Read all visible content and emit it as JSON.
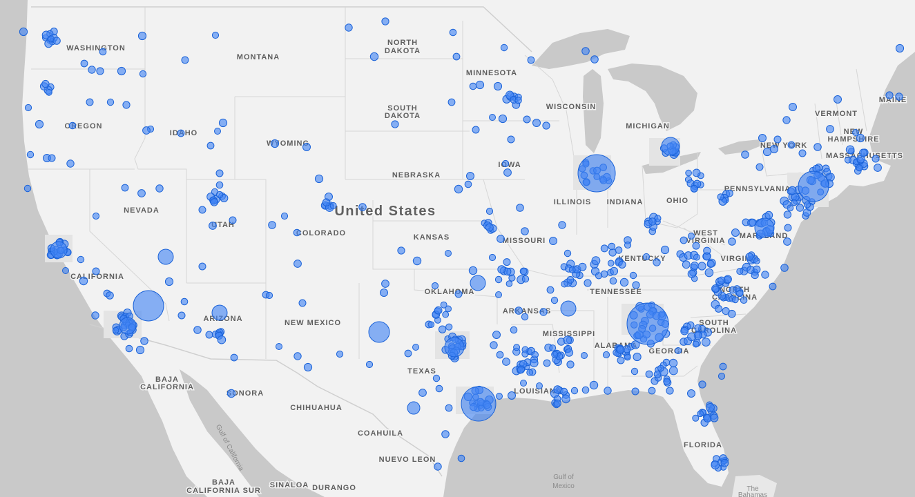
{
  "map": {
    "country_label": "United States",
    "colors": {
      "water": "#c9c9c9",
      "land": "#f2f2f2",
      "lakes": "#c9c9c9",
      "borders": "#cccccc",
      "marker_fill": "#4285f4",
      "marker_stroke": "#1a62d8"
    },
    "state_labels": {
      "washington": "WASHINGTON",
      "oregon": "OREGON",
      "idaho": "IDAHO",
      "montana": "MONTANA",
      "north_dakota_1": "NORTH",
      "north_dakota_2": "DAKOTA",
      "south_dakota_1": "SOUTH",
      "south_dakota_2": "DAKOTA",
      "minnesota": "MINNESOTA",
      "wisconsin": "WISCONSIN",
      "michigan": "MICHIGAN",
      "wyoming": "WYOMING",
      "nebraska": "NEBRASKA",
      "iowa": "IOWA",
      "illinois": "ILLINOIS",
      "indiana": "INDIANA",
      "ohio": "OHIO",
      "pennsylvania": "PENNSYLVANIA",
      "new_york": "NEW YORK",
      "vermont": "VERMONT",
      "new_hampshire_1": "NEW",
      "new_hampshire_2": "HAMPSHIRE",
      "maine": "MAINE",
      "massachusetts": "MASSACHUSETTS",
      "maryland": "MARYLAND",
      "west_virginia_1": "WEST",
      "west_virginia_2": "VIRGINIA",
      "virginia": "VIRGINIA",
      "kentucky": "KENTUCKY",
      "north_carolina_1": "NORTH",
      "north_carolina_2": "CAROLINA",
      "south_carolina_1": "SOUTH",
      "south_carolina_2": "CAROLINA",
      "tennessee": "TENNESSEE",
      "georgia": "GEORGIA",
      "alabama": "ALABAMA",
      "mississippi": "MISSISSIPPI",
      "florida": "FLORIDA",
      "louisiana": "LOUISIANA",
      "arkansas": "ARKANSAS",
      "missouri": "MISSOURI",
      "kansas": "KANSAS",
      "oklahoma": "OKLAHOMA",
      "texas": "TEXAS",
      "colorado": "COLORADO",
      "utah": "UTAH",
      "nevada": "NEVADA",
      "california": "CALIFORNIA",
      "arizona": "ARIZONA",
      "new_mexico": "NEW MEXICO",
      "baja_california_1": "BAJA",
      "baja_california_2": "CALIFORNIA",
      "sonora": "SONORA",
      "chihuahua": "CHIHUAHUA",
      "coahuila": "COAHUILA",
      "nuevo_leon": "NUEVO LEON",
      "baja_california_sur_1": "BAJA",
      "baja_california_sur_2": "CALIFORNIA SUR",
      "sinaloa": "SINALOA",
      "durango": "DURANGO"
    },
    "water_labels": {
      "gulf_of_mexico_1": "Gulf of",
      "gulf_of_mexico_2": "Mexico",
      "gulf_of_california": "Gulf of California",
      "bahamas_1": "The",
      "bahamas_2": "Bahamas"
    }
  }
}
